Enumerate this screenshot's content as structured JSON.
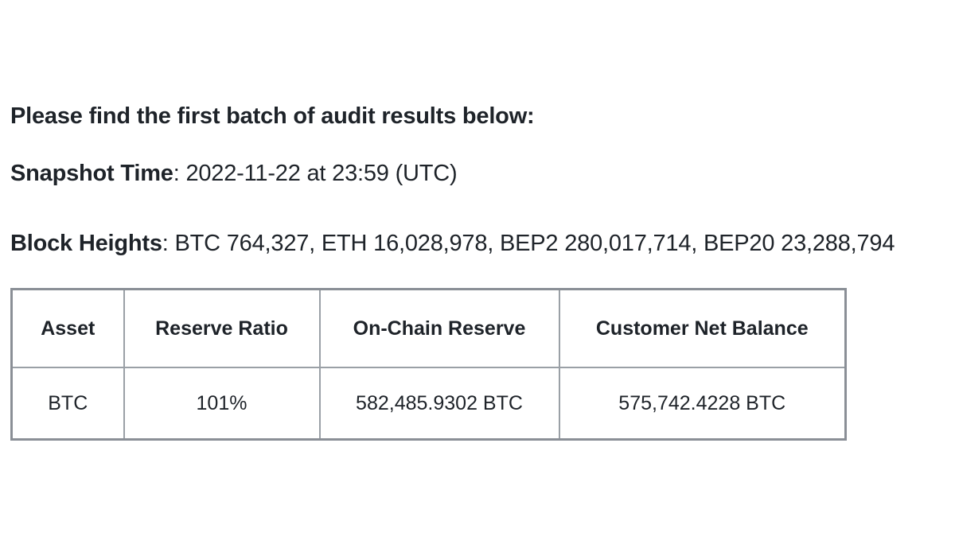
{
  "intro": "Please find the first batch of audit results below:",
  "snapshot": {
    "label": "Snapshot Time",
    "value": ": 2022-11-22 at 23:59 (UTC)"
  },
  "block_heights": {
    "label": "Block Heights",
    "value": ": BTC 764,327, ETH 16,028,978, BEP2 280,017,714, BEP20 23,288,794"
  },
  "table": {
    "headers": [
      "Asset",
      "Reserve Ratio",
      "On-Chain Reserve",
      "Customer Net Balance"
    ],
    "rows": [
      [
        "BTC",
        "101%",
        "582,485.9302 BTC",
        "575,742.4228 BTC"
      ]
    ]
  }
}
